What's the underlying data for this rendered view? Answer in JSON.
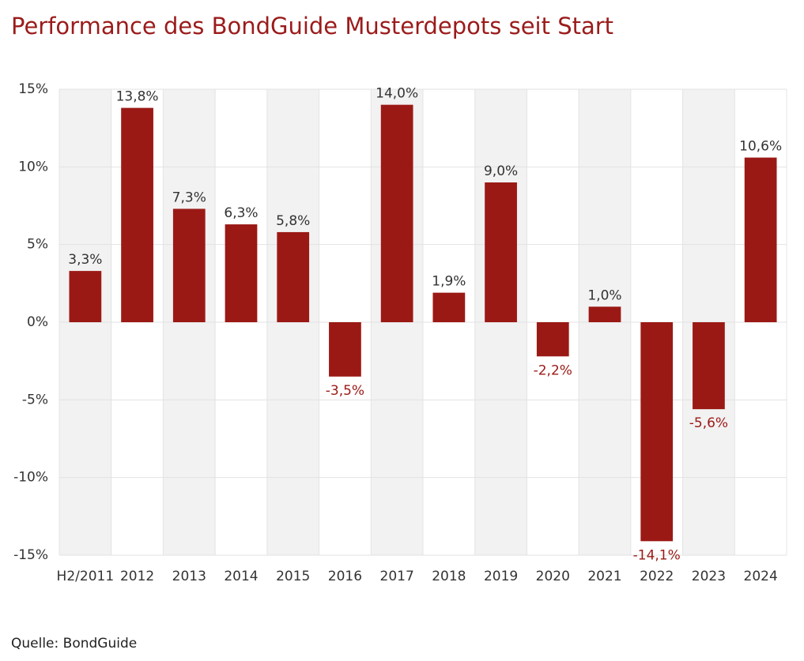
{
  "chart_data": {
    "type": "bar",
    "title": "Performance des BondGuide Musterdepots seit Start",
    "source": "Quelle: BondGuide",
    "categories": [
      "H2/2011",
      "2012",
      "2013",
      "2014",
      "2015",
      "2016",
      "2017",
      "2018",
      "2019",
      "2020",
      "2021",
      "2022",
      "2023",
      "2024"
    ],
    "values": [
      3.3,
      13.8,
      7.3,
      6.3,
      5.8,
      -3.5,
      14.0,
      1.9,
      9.0,
      -2.2,
      1.0,
      -14.1,
      -5.6,
      10.6
    ],
    "value_labels": [
      "3,3%",
      "13,8%",
      "7,3%",
      "6,3%",
      "5,8%",
      "-3,5%",
      "14,0%",
      "1,9%",
      "9,0%",
      "-2,2%",
      "1,0%",
      "-14,1%",
      "-5,6%",
      "10,6%"
    ],
    "color": "#9b1915",
    "ylim": [
      -15,
      15
    ],
    "yticks": [
      {
        "value": -15,
        "label": "-15%"
      },
      {
        "value": -10,
        "label": "-10%"
      },
      {
        "value": -5,
        "label": "-5%"
      },
      {
        "value": 0,
        "label": "0%"
      },
      {
        "value": 5,
        "label": "5%"
      },
      {
        "value": 10,
        "label": "10%"
      },
      {
        "value": 15,
        "label": "15%"
      }
    ],
    "grid": true
  }
}
